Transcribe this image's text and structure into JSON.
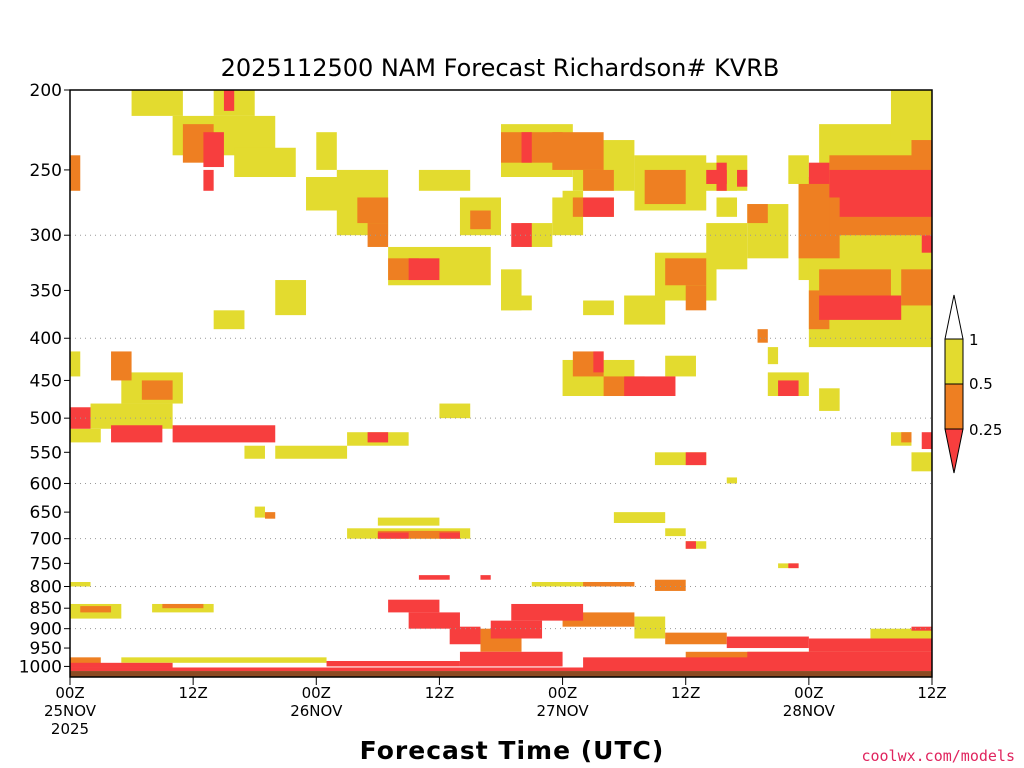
{
  "chart_data": {
    "type": "heatmap",
    "title": "2025112500 NAM Forecast Richardson# KVRB",
    "xlabel": "Forecast Time (UTC)",
    "ylabel": "",
    "credit": "coolwx.com/models",
    "y_ticks": [
      "200",
      "250",
      "300",
      "350",
      "400",
      "450",
      "500",
      "550",
      "600",
      "650",
      "700",
      "750",
      "800",
      "850",
      "900",
      "950",
      "1000"
    ],
    "y_levels": [
      200,
      250,
      300,
      350,
      400,
      450,
      500,
      550,
      600,
      650,
      700,
      750,
      800,
      850,
      900,
      950,
      1000
    ],
    "grid_levels": [
      300,
      400,
      500,
      600,
      700,
      800,
      900
    ],
    "x_ticks": [
      {
        "hour": 0,
        "line1": "00Z",
        "line2": "25NOV",
        "line3": "2025"
      },
      {
        "hour": 12,
        "line1": "12Z",
        "line2": "",
        "line3": ""
      },
      {
        "hour": 24,
        "line1": "00Z",
        "line2": "26NOV",
        "line3": ""
      },
      {
        "hour": 36,
        "line1": "12Z",
        "line2": "",
        "line3": ""
      },
      {
        "hour": 48,
        "line1": "00Z",
        "line2": "27NOV",
        "line3": ""
      },
      {
        "hour": 60,
        "line1": "12Z",
        "line2": "",
        "line3": ""
      },
      {
        "hour": 72,
        "line1": "00Z",
        "line2": "28NOV",
        "line3": ""
      },
      {
        "hour": 84,
        "line1": "12Z",
        "line2": "",
        "line3": ""
      }
    ],
    "x_range_hours": [
      0,
      84
    ],
    "pressure_range_hPa": [
      200,
      1030
    ],
    "colorbar": {
      "labels": [
        "1",
        "0.5",
        "0.25"
      ],
      "colors": {
        "lt_0.25": "#f73e3e",
        "0.25_0.5": "#ee7f22",
        "0.5_1": "#e3db2f",
        "ground": "#8b4a22"
      }
    },
    "regions": [
      {
        "t0": 0,
        "t1": 2,
        "p0": 485,
        "p1": 515,
        "c": "r"
      },
      {
        "t0": 4,
        "t1": 9,
        "p0": 510,
        "p1": 535,
        "c": "r"
      },
      {
        "t0": 10,
        "t1": 20,
        "p0": 510,
        "p1": 535,
        "c": "r"
      },
      {
        "t0": 0,
        "t1": 3,
        "p0": 515,
        "p1": 535,
        "c": "y"
      },
      {
        "t0": 2,
        "t1": 10,
        "p0": 480,
        "p1": 515,
        "c": "y"
      },
      {
        "t0": 0,
        "t1": 1,
        "p0": 240,
        "p1": 265,
        "c": "o"
      },
      {
        "t0": 0,
        "t1": 1,
        "p0": 415,
        "p1": 445,
        "c": "y"
      },
      {
        "t0": 4,
        "t1": 6,
        "p0": 415,
        "p1": 450,
        "c": "o"
      },
      {
        "t0": 7,
        "t1": 10,
        "p0": 450,
        "p1": 475,
        "c": "o"
      },
      {
        "t0": 5,
        "t1": 11,
        "p0": 440,
        "p1": 480,
        "c": "y"
      },
      {
        "t0": 6,
        "t1": 11,
        "p0": 200,
        "p1": 215,
        "c": "y"
      },
      {
        "t0": 14,
        "t1": 18,
        "p0": 200,
        "p1": 215,
        "c": "y"
      },
      {
        "t0": 15,
        "t1": 16,
        "p0": 200,
        "p1": 212,
        "c": "r"
      },
      {
        "t0": 11,
        "t1": 14,
        "p0": 220,
        "p1": 245,
        "c": "o"
      },
      {
        "t0": 13,
        "t1": 15,
        "p0": 225,
        "p1": 248,
        "c": "r"
      },
      {
        "t0": 10,
        "t1": 20,
        "p0": 215,
        "p1": 240,
        "c": "y"
      },
      {
        "t0": 13,
        "t1": 14,
        "p0": 250,
        "p1": 265,
        "c": "r"
      },
      {
        "t0": 16,
        "t1": 22,
        "p0": 235,
        "p1": 255,
        "c": "y"
      },
      {
        "t0": 14,
        "t1": 17,
        "p0": 370,
        "p1": 390,
        "c": "y"
      },
      {
        "t0": 20,
        "t1": 23,
        "p0": 340,
        "p1": 375,
        "c": "y"
      },
      {
        "t0": 17,
        "t1": 19,
        "p0": 540,
        "p1": 560,
        "c": "y"
      },
      {
        "t0": 20,
        "t1": 27,
        "p0": 540,
        "p1": 560,
        "c": "y"
      },
      {
        "t0": 23,
        "t1": 28,
        "p0": 255,
        "p1": 280,
        "c": "y"
      },
      {
        "t0": 24,
        "t1": 26,
        "p0": 225,
        "p1": 250,
        "c": "y"
      },
      {
        "t0": 26,
        "t1": 31,
        "p0": 250,
        "p1": 300,
        "c": "y"
      },
      {
        "t0": 28,
        "t1": 31,
        "p0": 270,
        "p1": 290,
        "c": "o"
      },
      {
        "t0": 29,
        "t1": 31,
        "p0": 290,
        "p1": 310,
        "c": "o"
      },
      {
        "t0": 31,
        "t1": 34,
        "p0": 320,
        "p1": 340,
        "c": "o"
      },
      {
        "t0": 33,
        "t1": 36,
        "p0": 320,
        "p1": 340,
        "c": "r"
      },
      {
        "t0": 31,
        "t1": 41,
        "p0": 310,
        "p1": 345,
        "c": "y"
      },
      {
        "t0": 34,
        "t1": 39,
        "p0": 250,
        "p1": 265,
        "c": "y"
      },
      {
        "t0": 38,
        "t1": 42,
        "p0": 270,
        "p1": 300,
        "c": "y"
      },
      {
        "t0": 39,
        "t1": 41,
        "p0": 280,
        "p1": 295,
        "c": "o"
      },
      {
        "t0": 42,
        "t1": 44,
        "p0": 330,
        "p1": 370,
        "c": "y"
      },
      {
        "t0": 42,
        "t1": 45,
        "p0": 355,
        "p1": 370,
        "c": "y"
      },
      {
        "t0": 36,
        "t1": 39,
        "p0": 480,
        "p1": 500,
        "c": "y"
      },
      {
        "t0": 27,
        "t1": 33,
        "p0": 520,
        "p1": 540,
        "c": "y"
      },
      {
        "t0": 29,
        "t1": 31,
        "p0": 520,
        "p1": 535,
        "c": "r"
      },
      {
        "t0": 42,
        "t1": 48,
        "p0": 225,
        "p1": 245,
        "c": "o"
      },
      {
        "t0": 44,
        "t1": 45,
        "p0": 225,
        "p1": 245,
        "c": "r"
      },
      {
        "t0": 42,
        "t1": 49,
        "p0": 220,
        "p1": 255,
        "c": "y"
      },
      {
        "t0": 47,
        "t1": 52,
        "p0": 225,
        "p1": 250,
        "c": "o"
      },
      {
        "t0": 49,
        "t1": 55,
        "p0": 230,
        "p1": 265,
        "c": "y"
      },
      {
        "t0": 50,
        "t1": 53,
        "p0": 250,
        "p1": 265,
        "c": "o"
      },
      {
        "t0": 48,
        "t1": 50,
        "p0": 265,
        "p1": 285,
        "c": "y"
      },
      {
        "t0": 49,
        "t1": 53,
        "p0": 270,
        "p1": 285,
        "c": "o"
      },
      {
        "t0": 50,
        "t1": 53,
        "p0": 270,
        "p1": 285,
        "c": "r"
      },
      {
        "t0": 47,
        "t1": 50,
        "p0": 270,
        "p1": 300,
        "c": "y"
      },
      {
        "t0": 43,
        "t1": 45,
        "p0": 290,
        "p1": 310,
        "c": "r"
      },
      {
        "t0": 44,
        "t1": 47,
        "p0": 290,
        "p1": 310,
        "c": "y"
      },
      {
        "t0": 50,
        "t1": 53,
        "p0": 360,
        "p1": 375,
        "c": "y"
      },
      {
        "t0": 54,
        "t1": 58,
        "p0": 355,
        "p1": 385,
        "c": "y"
      },
      {
        "t0": 49,
        "t1": 52,
        "p0": 415,
        "p1": 445,
        "c": "o"
      },
      {
        "t0": 51,
        "t1": 52,
        "p0": 415,
        "p1": 440,
        "c": "r"
      },
      {
        "t0": 48,
        "t1": 55,
        "p0": 425,
        "p1": 470,
        "c": "y"
      },
      {
        "t0": 52,
        "t1": 56,
        "p0": 445,
        "p1": 470,
        "c": "o"
      },
      {
        "t0": 54,
        "t1": 59,
        "p0": 445,
        "p1": 470,
        "c": "r"
      },
      {
        "t0": 58,
        "t1": 61,
        "p0": 420,
        "p1": 445,
        "c": "y"
      },
      {
        "t0": 56,
        "t1": 60,
        "p0": 250,
        "p1": 275,
        "c": "o"
      },
      {
        "t0": 55,
        "t1": 62,
        "p0": 240,
        "p1": 280,
        "c": "y"
      },
      {
        "t0": 60,
        "t1": 65,
        "p0": 245,
        "p1": 265,
        "c": "y"
      },
      {
        "t0": 62,
        "t1": 64,
        "p0": 250,
        "p1": 260,
        "c": "r"
      },
      {
        "t0": 63,
        "t1": 65,
        "p0": 270,
        "p1": 285,
        "c": "y"
      },
      {
        "t0": 58,
        "t1": 62,
        "p0": 320,
        "p1": 345,
        "c": "o"
      },
      {
        "t0": 57,
        "t1": 63,
        "p0": 315,
        "p1": 360,
        "c": "y"
      },
      {
        "t0": 60,
        "t1": 62,
        "p0": 345,
        "p1": 370,
        "c": "o"
      },
      {
        "t0": 62,
        "t1": 66,
        "p0": 290,
        "p1": 330,
        "c": "y"
      },
      {
        "t0": 63,
        "t1": 66,
        "p0": 240,
        "p1": 265,
        "c": "y"
      },
      {
        "t0": 63,
        "t1": 64,
        "p0": 245,
        "p1": 265,
        "c": "r"
      },
      {
        "t0": 65,
        "t1": 66,
        "p0": 250,
        "p1": 262,
        "c": "r"
      },
      {
        "t0": 66,
        "t1": 70,
        "p0": 275,
        "p1": 320,
        "c": "y"
      },
      {
        "t0": 66,
        "t1": 68,
        "p0": 275,
        "p1": 290,
        "c": "o"
      },
      {
        "t0": 67,
        "t1": 68,
        "p0": 390,
        "p1": 405,
        "c": "o"
      },
      {
        "t0": 68,
        "t1": 69,
        "p0": 410,
        "p1": 430,
        "c": "y"
      },
      {
        "t0": 68,
        "t1": 72,
        "p0": 440,
        "p1": 470,
        "c": "y"
      },
      {
        "t0": 69,
        "t1": 71,
        "p0": 450,
        "p1": 470,
        "c": "r"
      },
      {
        "t0": 70,
        "t1": 72,
        "p0": 240,
        "p1": 260,
        "c": "y"
      },
      {
        "t0": 72,
        "t1": 74,
        "p0": 245,
        "p1": 260,
        "c": "r"
      },
      {
        "t0": 71,
        "t1": 75,
        "p0": 260,
        "p1": 320,
        "c": "o"
      },
      {
        "t0": 71,
        "t1": 76,
        "p0": 255,
        "p1": 340,
        "c": "y"
      },
      {
        "t0": 74,
        "t1": 84,
        "p0": 250,
        "p1": 270,
        "c": "r"
      },
      {
        "t0": 75,
        "t1": 84,
        "p0": 265,
        "p1": 285,
        "c": "r"
      },
      {
        "t0": 74,
        "t1": 84,
        "p0": 240,
        "p1": 300,
        "c": "o"
      },
      {
        "t0": 73,
        "t1": 84,
        "p0": 220,
        "p1": 330,
        "c": "y"
      },
      {
        "t0": 82,
        "t1": 84,
        "p0": 230,
        "p1": 250,
        "c": "o"
      },
      {
        "t0": 73,
        "t1": 80,
        "p0": 330,
        "p1": 360,
        "c": "o"
      },
      {
        "t0": 72,
        "t1": 84,
        "p0": 300,
        "p1": 410,
        "c": "y"
      },
      {
        "t0": 72,
        "t1": 74,
        "p0": 350,
        "p1": 390,
        "c": "o"
      },
      {
        "t0": 73,
        "t1": 81,
        "p0": 355,
        "p1": 380,
        "c": "r"
      },
      {
        "t0": 81,
        "t1": 84,
        "p0": 330,
        "p1": 365,
        "c": "o"
      },
      {
        "t0": 83,
        "t1": 84,
        "p0": 300,
        "p1": 315,
        "c": "r"
      },
      {
        "t0": 84,
        "t1": 85,
        "p0": 265,
        "p1": 290,
        "c": "r"
      },
      {
        "t0": 80,
        "t1": 84,
        "p0": 200,
        "p1": 230,
        "c": "y"
      },
      {
        "t0": 73,
        "t1": 75,
        "p0": 460,
        "p1": 490,
        "c": "y"
      },
      {
        "t0": 80,
        "t1": 82,
        "p0": 520,
        "p1": 540,
        "c": "y"
      },
      {
        "t0": 81,
        "t1": 82,
        "p0": 520,
        "p1": 535,
        "c": "o"
      },
      {
        "t0": 83,
        "t1": 84,
        "p0": 520,
        "p1": 545,
        "c": "r"
      },
      {
        "t0": 82,
        "t1": 84,
        "p0": 550,
        "p1": 580,
        "c": "y"
      },
      {
        "t0": 57,
        "t1": 62,
        "p0": 550,
        "p1": 570,
        "c": "y"
      },
      {
        "t0": 60,
        "t1": 62,
        "p0": 550,
        "p1": 570,
        "c": "r"
      },
      {
        "t0": 64,
        "t1": 65,
        "p0": 590,
        "p1": 600,
        "c": "y"
      },
      {
        "t0": 18,
        "t1": 19,
        "p0": 640,
        "p1": 660,
        "c": "y"
      },
      {
        "t0": 19,
        "t1": 20,
        "p0": 650,
        "p1": 662,
        "c": "o"
      },
      {
        "t0": 27,
        "t1": 39,
        "p0": 680,
        "p1": 700,
        "c": "y"
      },
      {
        "t0": 30,
        "t1": 38,
        "p0": 685,
        "p1": 700,
        "c": "o"
      },
      {
        "t0": 30,
        "t1": 33,
        "p0": 688,
        "p1": 700,
        "c": "r"
      },
      {
        "t0": 36,
        "t1": 38,
        "p0": 688,
        "p1": 700,
        "c": "r"
      },
      {
        "t0": 30,
        "t1": 36,
        "p0": 660,
        "p1": 675,
        "c": "y"
      },
      {
        "t0": 53,
        "t1": 58,
        "p0": 650,
        "p1": 670,
        "c": "y"
      },
      {
        "t0": 58,
        "t1": 60,
        "p0": 680,
        "p1": 695,
        "c": "y"
      },
      {
        "t0": 60,
        "t1": 62,
        "p0": 705,
        "p1": 720,
        "c": "y"
      },
      {
        "t0": 60,
        "t1": 61,
        "p0": 705,
        "p1": 720,
        "c": "r"
      },
      {
        "t0": 69,
        "t1": 71,
        "p0": 750,
        "p1": 760,
        "c": "y"
      },
      {
        "t0": 70,
        "t1": 71,
        "p0": 750,
        "p1": 760,
        "c": "r"
      },
      {
        "t0": 34,
        "t1": 37,
        "p0": 775,
        "p1": 785,
        "c": "r"
      },
      {
        "t0": 40,
        "t1": 41,
        "p0": 775,
        "p1": 785,
        "c": "r"
      },
      {
        "t0": 45,
        "t1": 53,
        "p0": 790,
        "p1": 800,
        "c": "y"
      },
      {
        "t0": 50,
        "t1": 55,
        "p0": 790,
        "p1": 800,
        "c": "o"
      },
      {
        "t0": 57,
        "t1": 60,
        "p0": 785,
        "p1": 810,
        "c": "o"
      },
      {
        "t0": 0,
        "t1": 2,
        "p0": 790,
        "p1": 800,
        "c": "y"
      },
      {
        "t0": 0,
        "t1": 5,
        "p0": 840,
        "p1": 875,
        "c": "y"
      },
      {
        "t0": 1,
        "t1": 4,
        "p0": 845,
        "p1": 860,
        "c": "o"
      },
      {
        "t0": 8,
        "t1": 14,
        "p0": 840,
        "p1": 860,
        "c": "y"
      },
      {
        "t0": 9,
        "t1": 13,
        "p0": 840,
        "p1": 850,
        "c": "o"
      },
      {
        "t0": 31,
        "t1": 36,
        "p0": 830,
        "p1": 860,
        "c": "r"
      },
      {
        "t0": 33,
        "t1": 38,
        "p0": 860,
        "p1": 900,
        "c": "r"
      },
      {
        "t0": 37,
        "t1": 40,
        "p0": 895,
        "p1": 940,
        "c": "r"
      },
      {
        "t0": 41,
        "t1": 46,
        "p0": 880,
        "p1": 925,
        "c": "r"
      },
      {
        "t0": 43,
        "t1": 50,
        "p0": 840,
        "p1": 880,
        "c": "r"
      },
      {
        "t0": 40,
        "t1": 44,
        "p0": 900,
        "p1": 960,
        "c": "o"
      },
      {
        "t0": 48,
        "t1": 55,
        "p0": 860,
        "p1": 895,
        "c": "o"
      },
      {
        "t0": 55,
        "t1": 58,
        "p0": 870,
        "p1": 925,
        "c": "y"
      },
      {
        "t0": 58,
        "t1": 64,
        "p0": 910,
        "p1": 940,
        "c": "o"
      },
      {
        "t0": 64,
        "t1": 72,
        "p0": 920,
        "p1": 950,
        "c": "r"
      },
      {
        "t0": 72,
        "t1": 84,
        "p0": 925,
        "p1": 960,
        "c": "r"
      },
      {
        "t0": 78,
        "t1": 84,
        "p0": 900,
        "p1": 925,
        "c": "y"
      },
      {
        "t0": 82,
        "t1": 84,
        "p0": 895,
        "p1": 905,
        "c": "r"
      },
      {
        "t0": 38,
        "t1": 48,
        "p0": 960,
        "p1": 1000,
        "c": "r"
      },
      {
        "t0": 50,
        "t1": 84,
        "p0": 975,
        "p1": 1005,
        "c": "r"
      },
      {
        "t0": 60,
        "t1": 84,
        "p0": 960,
        "p1": 985,
        "c": "o"
      },
      {
        "t0": 66,
        "t1": 84,
        "p0": 960,
        "p1": 980,
        "c": "r"
      },
      {
        "t0": 0,
        "t1": 84,
        "p0": 1003,
        "p1": 1013,
        "c": "r"
      },
      {
        "t0": 0,
        "t1": 10,
        "p0": 990,
        "p1": 1003,
        "c": "r"
      },
      {
        "t0": 0,
        "t1": 3,
        "p0": 975,
        "p1": 995,
        "c": "o"
      },
      {
        "t0": 5,
        "t1": 25,
        "p0": 975,
        "p1": 990,
        "c": "y"
      },
      {
        "t0": 25,
        "t1": 38,
        "p0": 985,
        "p1": 1000,
        "c": "r"
      }
    ]
  }
}
